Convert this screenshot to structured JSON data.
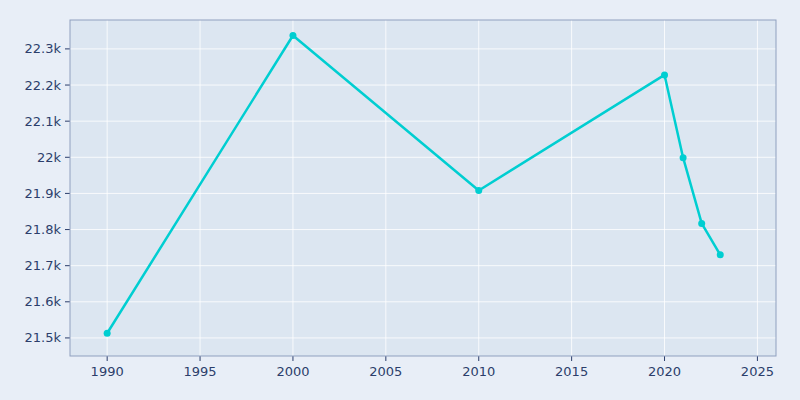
{
  "chart_data": {
    "type": "line",
    "x": [
      1990,
      2000,
      2010,
      2020,
      2021,
      2022,
      2023
    ],
    "values": [
      21513,
      22337,
      21908,
      22228,
      21999,
      21817,
      21730
    ],
    "color": "#00CED1",
    "marker": "circle",
    "xlim": [
      1988,
      2026
    ],
    "ylim": [
      21450,
      22380
    ],
    "xticks": [
      1990,
      1995,
      2000,
      2005,
      2010,
      2015,
      2020,
      2025
    ],
    "yticks": [
      {
        "value": 21500,
        "label": "21.5k"
      },
      {
        "value": 21600,
        "label": "21.6k"
      },
      {
        "value": 21700,
        "label": "21.7k"
      },
      {
        "value": 21800,
        "label": "21.8k"
      },
      {
        "value": 21900,
        "label": "21.9k"
      },
      {
        "value": 22000,
        "label": "22k"
      },
      {
        "value": 22100,
        "label": "22.1k"
      },
      {
        "value": 22200,
        "label": "22.2k"
      },
      {
        "value": 22300,
        "label": "22.3k"
      }
    ],
    "grid": true
  }
}
